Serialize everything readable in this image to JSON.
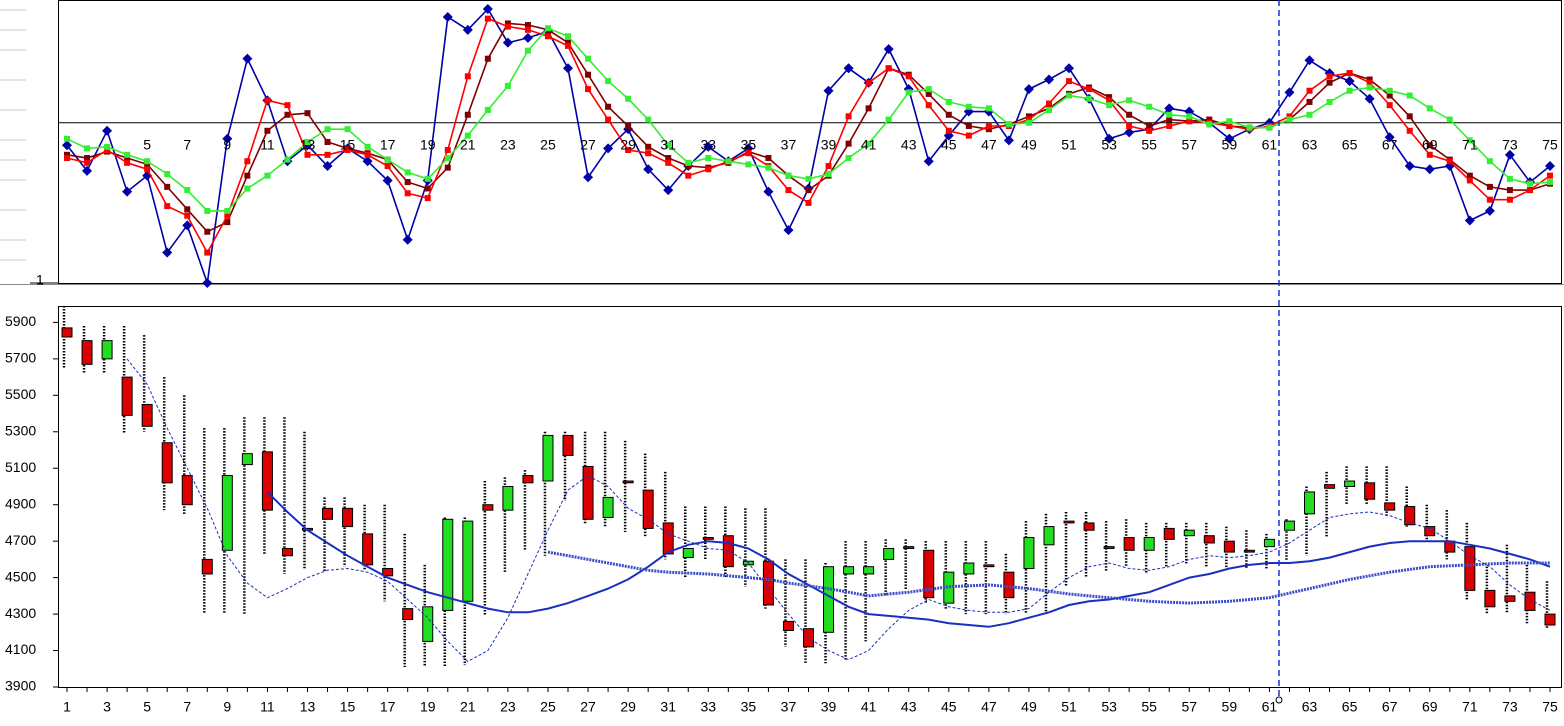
{
  "chart_data": [
    {
      "type": "line",
      "categories": [
        null,
        null,
        null,
        null,
        5,
        null,
        7,
        null,
        9,
        null,
        11,
        null,
        13,
        null,
        15,
        null,
        17,
        null,
        19,
        null,
        21,
        null,
        23,
        null,
        25,
        null,
        27,
        null,
        29,
        null,
        31,
        null,
        33,
        null,
        35,
        null,
        37,
        null,
        39,
        null,
        41,
        null,
        43,
        null,
        45,
        null,
        47,
        null,
        49,
        null,
        51,
        null,
        53,
        null,
        55,
        null,
        57,
        null,
        59,
        null,
        61,
        null,
        63,
        null,
        65,
        null,
        67,
        null,
        69,
        null,
        71,
        null,
        73,
        null,
        75
      ],
      "ylim": [
        -1,
        0.76
      ],
      "yticks": [
        {
          "value": -1,
          "label": "1"
        }
      ],
      "series": [
        {
          "color": "#0000a8",
          "marker": "diamond",
          "values": [
            -0.14,
            -0.3,
            -0.05,
            -0.43,
            -0.33,
            -0.81,
            -0.64,
            -1.0,
            -0.1,
            0.4,
            0.14,
            -0.24,
            -0.14,
            -0.27,
            -0.16,
            -0.24,
            -0.36,
            -0.73,
            -0.36,
            0.66,
            0.58,
            0.71,
            0.5,
            0.53,
            0.57,
            0.34,
            -0.34,
            -0.16,
            -0.04,
            -0.29,
            -0.42,
            -0.27,
            -0.15,
            -0.24,
            -0.16,
            -0.43,
            -0.67,
            -0.41,
            0.2,
            0.34,
            0.25,
            0.46,
            0.21,
            -0.24,
            -0.08,
            0.07,
            0.07,
            -0.11,
            0.21,
            0.27,
            0.34,
            0.15,
            -0.1,
            -0.06,
            -0.04,
            0.09,
            0.07,
            0,
            -0.1,
            -0.04,
            0,
            0.19,
            0.39,
            0.31,
            0.26,
            0.15,
            -0.09,
            -0.27,
            -0.29,
            -0.27,
            -0.61,
            -0.55,
            -0.2,
            -0.37,
            -0.27
          ]
        },
        {
          "color": "#800000",
          "marker": "square",
          "values": [
            -0.2,
            -0.22,
            -0.18,
            -0.22,
            -0.26,
            -0.4,
            -0.54,
            -0.68,
            -0.62,
            -0.33,
            -0.05,
            0.05,
            0.06,
            -0.12,
            -0.16,
            -0.19,
            -0.23,
            -0.37,
            -0.41,
            -0.28,
            0.05,
            0.4,
            0.62,
            0.61,
            0.58,
            0.5,
            0.3,
            0.1,
            -0.02,
            -0.15,
            -0.22,
            -0.27,
            -0.28,
            -0.25,
            -0.18,
            -0.22,
            -0.33,
            -0.42,
            -0.33,
            -0.13,
            0.09,
            0.34,
            0.3,
            0.18,
            0.05,
            -0.02,
            -0.04,
            -0.01,
            0.04,
            0.09,
            0.18,
            0.22,
            0.16,
            0.05,
            -0.02,
            0.02,
            0.01,
            0.02,
            -0.02,
            -0.03,
            -0.03,
            0.02,
            0.13,
            0.25,
            0.31,
            0.27,
            0.17,
            0.04,
            -0.14,
            -0.23,
            -0.33,
            -0.4,
            -0.42,
            -0.42,
            -0.38
          ]
        },
        {
          "color": "#ff0000",
          "marker": "square",
          "values": [
            -0.22,
            -0.25,
            -0.17,
            -0.25,
            -0.29,
            -0.52,
            -0.58,
            -0.81,
            -0.58,
            -0.24,
            0.14,
            0.11,
            -0.2,
            -0.2,
            -0.17,
            -0.2,
            -0.27,
            -0.44,
            -0.47,
            -0.17,
            0.29,
            0.65,
            0.6,
            0.58,
            0.54,
            0.48,
            0.21,
            0.02,
            -0.17,
            -0.19,
            -0.25,
            -0.33,
            -0.29,
            -0.24,
            -0.19,
            -0.27,
            -0.42,
            -0.5,
            -0.27,
            0.04,
            0.25,
            0.34,
            0.29,
            0.11,
            -0.05,
            -0.08,
            -0.02,
            -0.02,
            0.02,
            0.12,
            0.26,
            0.21,
            0.14,
            -0.02,
            -0.05,
            -0.02,
            0.01,
            0,
            -0.02,
            -0.04,
            -0.02,
            0.04,
            0.2,
            0.29,
            0.31,
            0.25,
            0.11,
            -0.05,
            -0.2,
            -0.24,
            -0.36,
            -0.48,
            -0.48,
            -0.42,
            -0.33
          ]
        },
        {
          "color": "#33ee33",
          "marker": "square",
          "values": [
            -0.1,
            -0.16,
            -0.15,
            -0.2,
            -0.24,
            -0.32,
            -0.42,
            -0.55,
            -0.55,
            -0.41,
            -0.33,
            -0.23,
            -0.12,
            -0.04,
            -0.04,
            -0.15,
            -0.23,
            -0.31,
            -0.35,
            -0.22,
            -0.08,
            0.08,
            0.23,
            0.45,
            0.59,
            0.54,
            0.4,
            0.26,
            0.15,
            0.02,
            -0.14,
            -0.25,
            -0.22,
            -0.24,
            -0.26,
            -0.28,
            -0.33,
            -0.35,
            -0.32,
            -0.22,
            -0.13,
            0.02,
            0.19,
            0.21,
            0.13,
            0.1,
            0.09,
            -0.01,
            0,
            0.08,
            0.17,
            0.15,
            0.11,
            0.14,
            0.1,
            0.05,
            0.04,
            -0.01,
            0.01,
            -0.03,
            -0.03,
            0.02,
            0.05,
            0.13,
            0.2,
            0.22,
            0.2,
            0.17,
            0.09,
            0.02,
            -0.11,
            -0.24,
            -0.35,
            -0.38,
            -0.37
          ]
        }
      ]
    },
    {
      "type": "candlestick",
      "categories": [
        1,
        null,
        3,
        null,
        5,
        null,
        7,
        null,
        9,
        null,
        11,
        null,
        13,
        null,
        15,
        null,
        17,
        null,
        19,
        null,
        21,
        null,
        23,
        null,
        25,
        null,
        27,
        null,
        29,
        null,
        31,
        null,
        33,
        null,
        35,
        null,
        37,
        null,
        39,
        null,
        41,
        null,
        43,
        null,
        45,
        null,
        47,
        null,
        49,
        null,
        51,
        null,
        53,
        null,
        55,
        null,
        57,
        null,
        59,
        null,
        61,
        null,
        63,
        null,
        65,
        null,
        67,
        null,
        69,
        null,
        71,
        null,
        73,
        null,
        75
      ],
      "ylim": [
        3900,
        5990
      ],
      "yticks": [
        3900,
        4100,
        4300,
        4500,
        4700,
        4900,
        5100,
        5300,
        5500,
        5700,
        5900
      ],
      "up_color": "#22dd22",
      "down_color": "#dd0000",
      "open": [
        5870,
        5800,
        5700,
        5600,
        5450,
        5240,
        5060,
        4600,
        4650,
        5120,
        5190,
        4660,
        4770,
        4880,
        4880,
        4740,
        4550,
        4330,
        4150,
        4320,
        4370,
        4900,
        4870,
        5060,
        5030,
        5280,
        5110,
        4830,
        5030,
        4980,
        4800,
        4610,
        4720,
        4730,
        4570,
        4590,
        4260,
        4220,
        4200,
        4520,
        4520,
        4600,
        4670,
        4650,
        4360,
        4520,
        4570,
        4530,
        4550,
        4680,
        4810,
        4800,
        4670,
        4720,
        4650,
        4770,
        4730,
        4730,
        4700,
        4650,
        4670,
        4760,
        4850,
        5010,
        5000,
        5020,
        4910,
        4890,
        4780,
        4700,
        4670,
        4430,
        4400,
        4420,
        4300
      ],
      "high": [
        5990,
        5880,
        5880,
        5880,
        5830,
        5600,
        5500,
        5320,
        5320,
        5380,
        5380,
        5380,
        5300,
        4940,
        4940,
        4900,
        4900,
        4740,
        4570,
        4830,
        4830,
        5030,
        5050,
        5090,
        5300,
        5300,
        5300,
        5300,
        5250,
        5180,
        5080,
        4890,
        4890,
        4890,
        4880,
        4880,
        4600,
        4600,
        4580,
        4700,
        4700,
        4710,
        4710,
        4700,
        4700,
        4700,
        4700,
        4630,
        4810,
        4850,
        4860,
        4860,
        4810,
        4820,
        4800,
        4800,
        4800,
        4800,
        4780,
        4760,
        4740,
        4820,
        5000,
        5080,
        5110,
        5110,
        5110,
        5000,
        4900,
        4870,
        4800,
        4560,
        4680,
        4570,
        4480
      ],
      "low": [
        5650,
        5620,
        5620,
        5290,
        5300,
        4870,
        4850,
        4300,
        4300,
        4300,
        4630,
        4520,
        4550,
        4530,
        4560,
        4540,
        4370,
        4010,
        4010,
        4010,
        4020,
        4290,
        4530,
        4650,
        4620,
        4920,
        4790,
        4780,
        4750,
        4720,
        4600,
        4500,
        4600,
        4500,
        4450,
        4330,
        4120,
        4030,
        4030,
        4050,
        4150,
        4400,
        4430,
        4360,
        4330,
        4300,
        4300,
        4300,
        4300,
        4300,
        4450,
        4500,
        4530,
        4560,
        4520,
        4560,
        4570,
        4560,
        4540,
        4550,
        4550,
        4590,
        4620,
        4720,
        4900,
        4900,
        4830,
        4780,
        4700,
        4600,
        4380,
        4300,
        4310,
        4250,
        4220
      ],
      "close": [
        5820,
        5670,
        5800,
        5390,
        5330,
        5020,
        4900,
        4520,
        5060,
        5180,
        4870,
        4620,
        4760,
        4820,
        4780,
        4570,
        4510,
        4270,
        4340,
        4820,
        4810,
        4870,
        5000,
        5020,
        5280,
        5170,
        4820,
        4940,
        5020,
        4770,
        4630,
        4660,
        4710,
        4560,
        4590,
        4350,
        4210,
        4120,
        4560,
        4560,
        4560,
        4660,
        4660,
        4390,
        4530,
        4580,
        4560,
        4390,
        4720,
        4780,
        4800,
        4760,
        4660,
        4650,
        4720,
        4710,
        4760,
        4690,
        4640,
        4640,
        4710,
        4810,
        4970,
        4990,
        5030,
        4930,
        4870,
        4790,
        4730,
        4640,
        4430,
        4340,
        4370,
        4320,
        4240
      ],
      "series": [
        {
          "color": "#1a2ebf",
          "style": "solid",
          "values": [
            null,
            null,
            null,
            null,
            null,
            null,
            null,
            null,
            null,
            null,
            4970,
            4860,
            4760,
            4690,
            4620,
            4560,
            4500,
            4460,
            4420,
            4390,
            4360,
            4330,
            4310,
            4310,
            4330,
            4360,
            4400,
            4440,
            4490,
            4560,
            4640,
            4680,
            4700,
            4690,
            4660,
            4600,
            4520,
            4460,
            4400,
            4340,
            4300,
            4290,
            4280,
            4270,
            4250,
            4240,
            4230,
            4250,
            4280,
            4310,
            4350,
            4370,
            4380,
            4400,
            4420,
            4460,
            4500,
            4520,
            4550,
            4570,
            4580,
            4580,
            4590,
            4610,
            4640,
            4670,
            4690,
            4700,
            4700,
            4700,
            4680,
            4660,
            4630,
            4600,
            4560
          ]
        },
        {
          "color": "#3a4ccc",
          "style": "dotted",
          "values": [
            null,
            null,
            null,
            null,
            null,
            null,
            null,
            null,
            null,
            null,
            null,
            null,
            null,
            null,
            null,
            null,
            null,
            null,
            null,
            null,
            null,
            null,
            null,
            null,
            4640,
            4620,
            4600,
            4580,
            4560,
            4540,
            4530,
            4525,
            4520,
            4510,
            4500,
            4490,
            4470,
            4455,
            4440,
            4420,
            4400,
            4410,
            4420,
            4435,
            4450,
            4455,
            4460,
            4450,
            4440,
            4425,
            4410,
            4400,
            4390,
            4380,
            4370,
            4365,
            4360,
            4365,
            4370,
            4380,
            4390,
            4415,
            4440,
            4465,
            4490,
            4510,
            4530,
            4545,
            4560,
            4565,
            4570,
            4575,
            4580,
            4580,
            4580
          ]
        },
        {
          "color": "#1a2ebf",
          "style": "dashed",
          "values": [
            null,
            null,
            null,
            5700,
            5560,
            5320,
            5100,
            4880,
            4620,
            4470,
            4390,
            4440,
            4500,
            4540,
            4550,
            4530,
            4480,
            4380,
            4280,
            4150,
            4040,
            4100,
            4280,
            4520,
            4760,
            4980,
            5060,
            5000,
            4880,
            4820,
            4740,
            4700,
            4660,
            4650,
            4580,
            4440,
            4300,
            4170,
            4100,
            4050,
            4100,
            4220,
            4320,
            4380,
            4340,
            4320,
            4310,
            4310,
            4330,
            4420,
            4500,
            4560,
            4580,
            4550,
            4540,
            4560,
            4600,
            4620,
            4610,
            4620,
            4640,
            4690,
            4760,
            4830,
            4850,
            4860,
            4840,
            4800,
            4770,
            4700,
            4620,
            4560,
            4460,
            4380,
            4320
          ]
        }
      ]
    }
  ]
}
